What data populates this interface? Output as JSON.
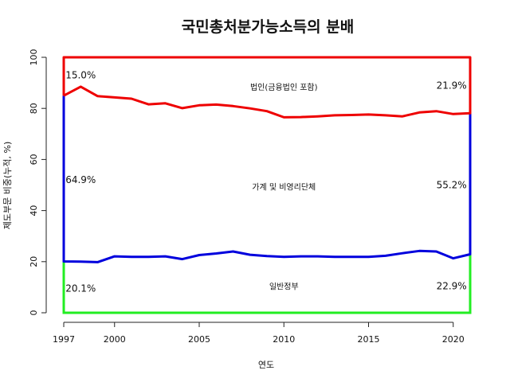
{
  "chart_data": {
    "type": "area",
    "title": "국민총처분가능소득의 분배",
    "xlabel": "연도",
    "ylabel": "제도부문 비중(누적, %)",
    "xlim": [
      1997,
      2021
    ],
    "ylim": [
      0,
      100
    ],
    "x_ticks": [
      1997,
      2000,
      2005,
      2010,
      2015,
      2020
    ],
    "y_ticks": [
      0,
      20,
      40,
      60,
      80,
      100
    ],
    "x": [
      1997,
      1998,
      1999,
      2000,
      2001,
      2002,
      2003,
      2004,
      2005,
      2006,
      2007,
      2008,
      2009,
      2010,
      2011,
      2012,
      2013,
      2014,
      2015,
      2016,
      2017,
      2018,
      2019,
      2020,
      2021
    ],
    "series": [
      {
        "name": "일반정부",
        "color": "#22ee22",
        "cumulative": [
          20.1,
          20.0,
          19.8,
          22.1,
          21.9,
          21.9,
          22.1,
          21.0,
          22.6,
          23.2,
          24.0,
          22.7,
          22.2,
          21.9,
          22.1,
          22.1,
          21.9,
          21.9,
          21.9,
          22.3,
          23.3,
          24.2,
          24.0,
          21.3,
          22.9
        ],
        "values": [
          20.1,
          20.0,
          19.8,
          22.1,
          21.9,
          21.9,
          22.1,
          21.0,
          22.6,
          23.2,
          24.0,
          22.7,
          22.2,
          21.9,
          22.1,
          22.1,
          21.9,
          21.9,
          21.9,
          22.3,
          23.3,
          24.2,
          24.0,
          21.3,
          22.9
        ]
      },
      {
        "name": "가계 및 비영리단체",
        "color": "#0000dd",
        "cumulative": [
          85.0,
          88.5,
          84.8,
          84.3,
          83.8,
          81.6,
          82.0,
          80.1,
          81.2,
          81.5,
          80.9,
          80.0,
          78.9,
          76.5,
          76.6,
          76.9,
          77.3,
          77.4,
          77.6,
          77.3,
          76.9,
          78.4,
          78.9,
          77.8,
          78.1
        ],
        "values": [
          64.9,
          68.5,
          65.0,
          62.2,
          61.9,
          59.7,
          59.9,
          59.1,
          58.6,
          58.3,
          56.9,
          57.3,
          56.7,
          54.6,
          54.5,
          54.8,
          55.4,
          55.5,
          55.7,
          55.0,
          53.6,
          54.2,
          54.9,
          56.5,
          55.2
        ]
      },
      {
        "name": "법인(금융법인 포함)",
        "color": "#ee0000",
        "cumulative": [
          100,
          100,
          100,
          100,
          100,
          100,
          100,
          100,
          100,
          100,
          100,
          100,
          100,
          100,
          100,
          100,
          100,
          100,
          100,
          100,
          100,
          100,
          100,
          100,
          100
        ],
        "values": [
          15.0,
          11.5,
          15.2,
          15.7,
          16.2,
          18.4,
          18.0,
          19.9,
          18.8,
          18.5,
          19.1,
          20.0,
          21.1,
          23.5,
          23.4,
          23.1,
          22.7,
          22.6,
          22.4,
          22.7,
          23.1,
          21.6,
          21.1,
          22.2,
          21.9
        ]
      }
    ],
    "annotations": [
      {
        "text": "15.0%",
        "x": 1998,
        "y": 93
      },
      {
        "text": "21.9%",
        "x": 2019.9,
        "y": 89
      },
      {
        "text": "64.9%",
        "x": 1998,
        "y": 52
      },
      {
        "text": "55.2%",
        "x": 2019.9,
        "y": 50
      },
      {
        "text": "20.1%",
        "x": 1998,
        "y": 9.5
      },
      {
        "text": "22.9%",
        "x": 2019.9,
        "y": 10.5
      }
    ],
    "band_labels": [
      {
        "text": "법인(금융법인 포함)",
        "x": 2010,
        "y": 88.5
      },
      {
        "text": "가계 및 비영리단체",
        "x": 2010,
        "y": 49.3
      },
      {
        "text": "일반정부",
        "x": 2010,
        "y": 10.5
      }
    ]
  }
}
